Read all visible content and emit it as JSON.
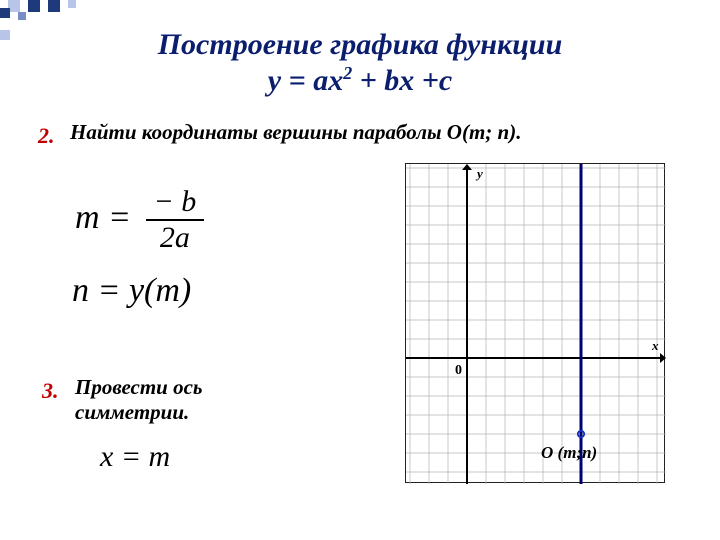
{
  "decor": {
    "colors": {
      "dark": "#1f3a7a",
      "light": "#b9c5e8",
      "mid": "#7a8cc6"
    }
  },
  "title": {
    "line1": "Построение  графика  функции",
    "line2_prefix": "y = ax",
    "line2_sup": "2",
    "line2_suffix": " + bx +c"
  },
  "step2": {
    "num": "2.",
    "text": "Найти  координаты  вершины  параболы О(m; n).",
    "formula_m_lhs": "m =",
    "formula_m_num": "− b",
    "formula_m_den": "2a",
    "formula_n": "n = y(m)"
  },
  "step3": {
    "num": "3.",
    "text": "Провести  ось симметрии.",
    "formula": "x = m"
  },
  "graph": {
    "grid_color": "#b4b4b4",
    "axis_color": "#000000",
    "sym_line_color": "#000070",
    "cell": 19,
    "cols": 13,
    "rows": 16,
    "origin_col": 3,
    "origin_row": 10,
    "sym_col": 9,
    "point_row": 14,
    "label_0": "0",
    "label_x": "x",
    "label_y": "y",
    "point_label": "O (m;n)",
    "point_color": "#1030c0"
  }
}
